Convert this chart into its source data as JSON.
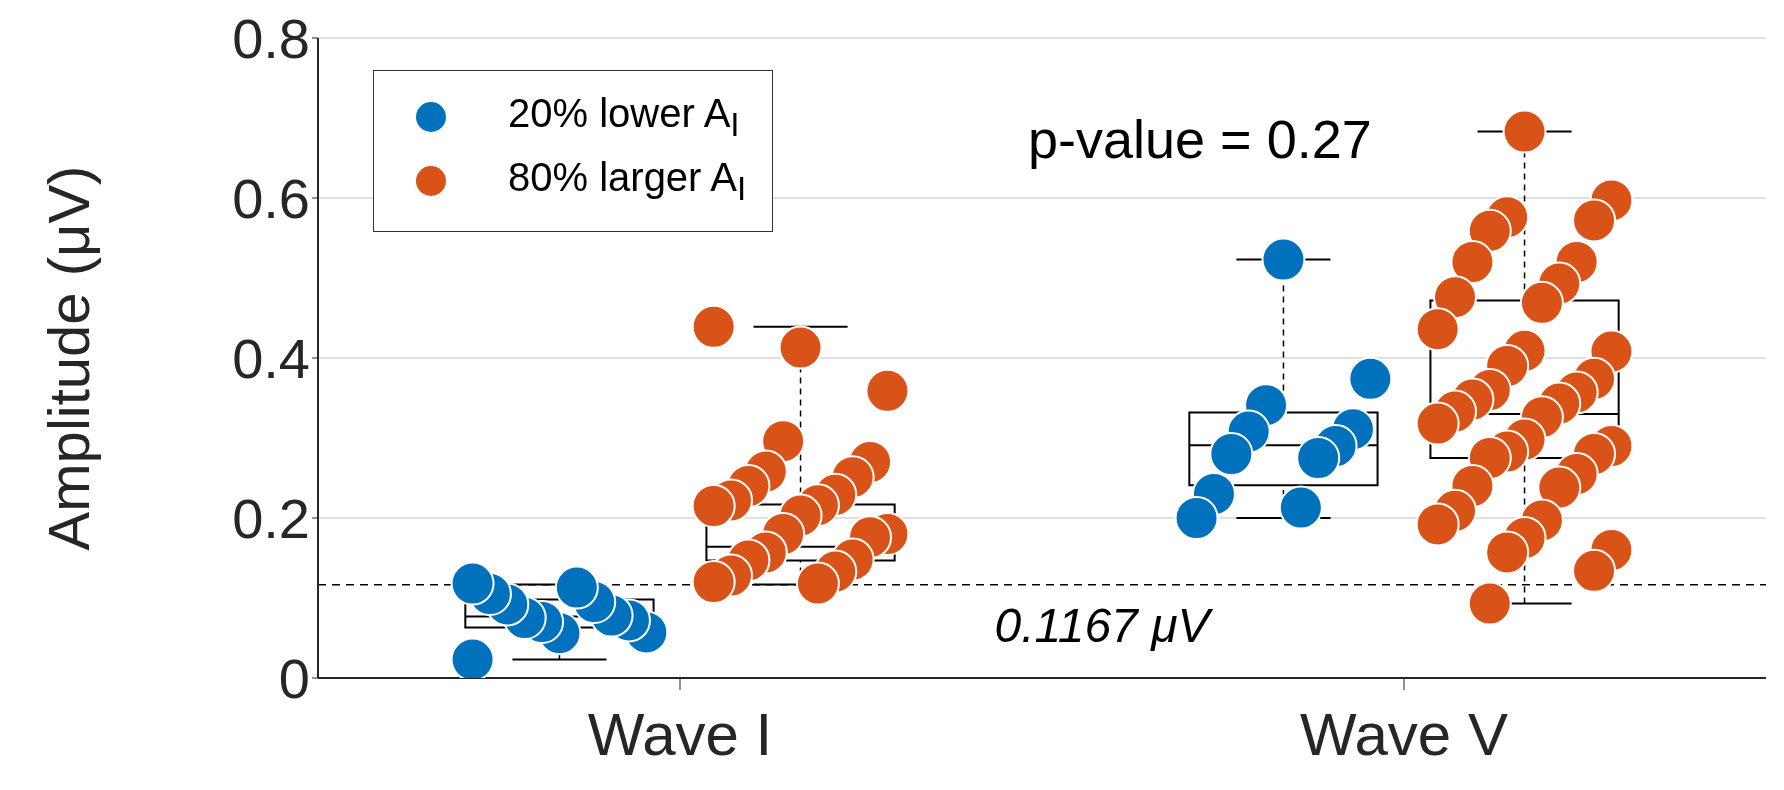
{
  "chart_data": {
    "type": "box",
    "ylabel": "Amplitude (μV)",
    "categories": [
      "Wave I",
      "Wave V"
    ],
    "ylim": [
      0,
      0.8
    ],
    "yticks": [
      0,
      0.2,
      0.4,
      0.6,
      0.8
    ],
    "grid": "y",
    "legend": "top left",
    "marker": "circle",
    "annotations": [
      "p-value = 0.27"
    ],
    "ref_lines": [
      {
        "axis": "y",
        "value": 0.1167,
        "label": "0.1167 μV",
        "color": "#000000",
        "line_style": "dashed"
      }
    ],
    "series": [
      {
        "color": "#000000",
        "boxes": [
          {
            "low": 0.023,
            "q1": 0.063,
            "median": 0.077,
            "q3": 0.098,
            "high": 0.117
          },
          {
            "low": 0.2,
            "q1": 0.241,
            "median": 0.291,
            "q3": 0.332,
            "high": 0.523
          }
        ]
      },
      {
        "color": "#000000",
        "boxes": [
          {
            "low": 0.117,
            "q1": 0.147,
            "median": 0.164,
            "q3": 0.217,
            "high": 0.439
          },
          {
            "low": 0.093,
            "q1": 0.275,
            "median": 0.33,
            "q3": 0.472,
            "high": 0.683
          }
        ]
      },
      {
        "type": "scatter",
        "name": "20% lower A$_{I}$",
        "color": "#0072bd",
        "x": [
          "Wave I",
          "Wave I",
          "Wave I",
          "Wave I",
          "Wave I",
          "Wave I",
          "Wave I",
          "Wave I",
          "Wave I",
          "Wave I",
          "Wave I",
          "Wave I",
          "Wave V",
          "Wave V",
          "Wave V",
          "Wave V",
          "Wave V",
          "Wave V",
          "Wave V",
          "Wave V",
          "Wave V",
          "Wave V",
          "Wave V"
        ],
        "values": [
          0.023,
          0.056,
          0.057,
          0.07,
          0.072,
          0.075,
          0.078,
          0.092,
          0.095,
          0.105,
          0.113,
          0.118,
          0.523,
          0.374,
          0.341,
          0.311,
          0.308,
          0.29,
          0.28,
          0.275,
          0.23,
          0.213,
          0.2
        ]
      },
      {
        "type": "scatter",
        "name": "80% larger A$_{I}$",
        "color": "#d95319",
        "x": [
          "Wave I",
          "Wave I",
          "Wave I",
          "Wave I",
          "Wave I",
          "Wave I",
          "Wave I",
          "Wave I",
          "Wave I",
          "Wave I",
          "Wave I",
          "Wave I",
          "Wave I",
          "Wave I",
          "Wave I",
          "Wave I",
          "Wave I",
          "Wave I",
          "Wave I",
          "Wave I",
          "Wave I",
          "Wave I",
          "Wave I",
          "Wave V",
          "Wave V",
          "Wave V",
          "Wave V",
          "Wave V",
          "Wave V",
          "Wave V",
          "Wave V",
          "Wave V",
          "Wave V",
          "Wave V",
          "Wave V",
          "Wave V",
          "Wave V",
          "Wave V",
          "Wave V",
          "Wave V",
          "Wave V",
          "Wave V",
          "Wave V",
          "Wave V",
          "Wave V",
          "Wave V",
          "Wave V",
          "Wave V",
          "Wave V",
          "Wave V",
          "Wave V",
          "Wave V",
          "Wave V",
          "Wave V",
          "Wave V",
          "Wave V",
          "Wave V",
          "Wave V",
          "Wave V",
          "Wave V",
          "Wave V"
        ],
        "values": [
          0.439,
          0.413,
          0.359,
          0.296,
          0.27,
          0.258,
          0.251,
          0.24,
          0.229,
          0.222,
          0.216,
          0.215,
          0.203,
          0.18,
          0.18,
          0.176,
          0.157,
          0.148,
          0.147,
          0.133,
          0.128,
          0.118,
          0.12,
          0.683,
          0.597,
          0.576,
          0.572,
          0.559,
          0.52,
          0.52,
          0.493,
          0.476,
          0.469,
          0.436,
          0.409,
          0.408,
          0.39,
          0.374,
          0.36,
          0.357,
          0.348,
          0.343,
          0.333,
          0.326,
          0.318,
          0.298,
          0.29,
          0.283,
          0.28,
          0.275,
          0.255,
          0.24,
          0.238,
          0.209,
          0.197,
          0.192,
          0.175,
          0.16,
          0.157,
          0.134,
          0.093
        ]
      }
    ]
  }
}
